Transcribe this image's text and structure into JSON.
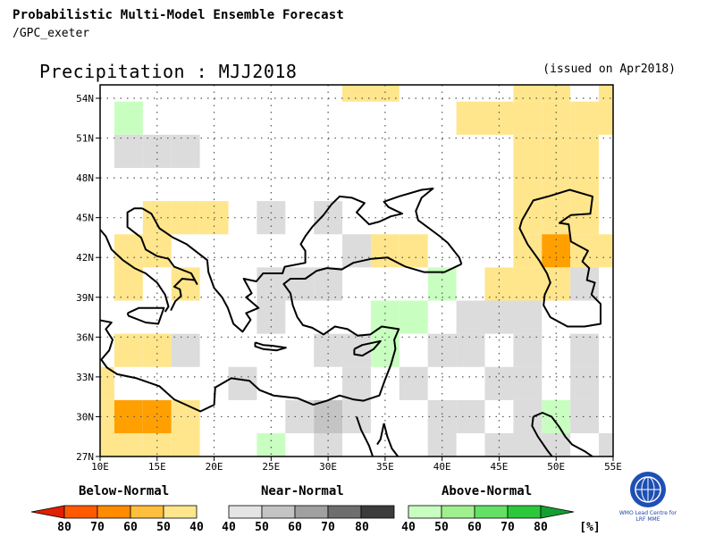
{
  "header": {
    "line1": "Probabilistic Multi-Model Ensemble Forecast",
    "line2": "/GPC_exeter",
    "title": "Precipitation : MJJ2018",
    "issued": "(issued on Apr2018)"
  },
  "map": {
    "lon_range": [
      10,
      55
    ],
    "lat_range": [
      27,
      55.5
    ],
    "x_ticks": [
      "10E",
      "15E",
      "20E",
      "25E",
      "30E",
      "35E",
      "40E",
      "45E",
      "50E",
      "55E"
    ],
    "y_ticks": [
      "27N",
      "30N",
      "33N",
      "36N",
      "39N",
      "42N",
      "45N",
      "48N",
      "51N",
      "54N"
    ],
    "cell_size_deg": 2.5,
    "cells": [
      {
        "lon": 32.5,
        "lat": 55,
        "cat": "b40"
      },
      {
        "lon": 35,
        "lat": 55,
        "cat": "b40"
      },
      {
        "lon": 47.5,
        "lat": 55,
        "cat": "b40"
      },
      {
        "lon": 50,
        "lat": 55,
        "cat": "b40"
      },
      {
        "lon": 55,
        "lat": 55,
        "cat": "b40"
      },
      {
        "lon": 42.5,
        "lat": 52.5,
        "cat": "b40"
      },
      {
        "lon": 45,
        "lat": 52.5,
        "cat": "b40"
      },
      {
        "lon": 47.5,
        "lat": 52.5,
        "cat": "b40"
      },
      {
        "lon": 50,
        "lat": 52.5,
        "cat": "b40"
      },
      {
        "lon": 52.5,
        "lat": 52.5,
        "cat": "b40"
      },
      {
        "lon": 55,
        "lat": 52.5,
        "cat": "b40"
      },
      {
        "lon": 12.5,
        "lat": 52.5,
        "cat": "a40"
      },
      {
        "lon": 12.5,
        "lat": 50,
        "cat": "n40"
      },
      {
        "lon": 15,
        "lat": 50,
        "cat": "n40"
      },
      {
        "lon": 17.5,
        "lat": 50,
        "cat": "n40"
      },
      {
        "lon": 47.5,
        "lat": 50,
        "cat": "b40"
      },
      {
        "lon": 50,
        "lat": 50,
        "cat": "b40"
      },
      {
        "lon": 52.5,
        "lat": 50,
        "cat": "b40"
      },
      {
        "lon": 47.5,
        "lat": 47.5,
        "cat": "b40"
      },
      {
        "lon": 50,
        "lat": 47.5,
        "cat": "b40"
      },
      {
        "lon": 52.5,
        "lat": 47.5,
        "cat": "b40"
      },
      {
        "lon": 15,
        "lat": 45,
        "cat": "b40"
      },
      {
        "lon": 17.5,
        "lat": 45,
        "cat": "b40"
      },
      {
        "lon": 20,
        "lat": 45,
        "cat": "b40"
      },
      {
        "lon": 25,
        "lat": 45,
        "cat": "n40"
      },
      {
        "lon": 30,
        "lat": 45,
        "cat": "n40"
      },
      {
        "lon": 47.5,
        "lat": 45,
        "cat": "b40"
      },
      {
        "lon": 50,
        "lat": 45,
        "cat": "b40"
      },
      {
        "lon": 52.5,
        "lat": 45,
        "cat": "b40"
      },
      {
        "lon": 15,
        "lat": 42.5,
        "cat": "b40"
      },
      {
        "lon": 12.5,
        "lat": 42.5,
        "cat": "b40"
      },
      {
        "lon": 32.5,
        "lat": 42.5,
        "cat": "n40"
      },
      {
        "lon": 35,
        "lat": 42.5,
        "cat": "b40"
      },
      {
        "lon": 37.5,
        "lat": 42.5,
        "cat": "b40"
      },
      {
        "lon": 47.5,
        "lat": 42.5,
        "cat": "b40"
      },
      {
        "lon": 50,
        "lat": 42.5,
        "cat": "b50"
      },
      {
        "lon": 52.5,
        "lat": 42.5,
        "cat": "b40"
      },
      {
        "lon": 55,
        "lat": 42.5,
        "cat": "b40"
      },
      {
        "lon": 12.5,
        "lat": 40,
        "cat": "b40"
      },
      {
        "lon": 17.5,
        "lat": 40,
        "cat": "b40"
      },
      {
        "lon": 25,
        "lat": 40,
        "cat": "n40"
      },
      {
        "lon": 27.5,
        "lat": 40,
        "cat": "n40"
      },
      {
        "lon": 30,
        "lat": 40,
        "cat": "n40"
      },
      {
        "lon": 40,
        "lat": 40,
        "cat": "a40"
      },
      {
        "lon": 45,
        "lat": 40,
        "cat": "b40"
      },
      {
        "lon": 47.5,
        "lat": 40,
        "cat": "b40"
      },
      {
        "lon": 50,
        "lat": 40,
        "cat": "b40"
      },
      {
        "lon": 52.5,
        "lat": 40,
        "cat": "n40"
      },
      {
        "lon": 25,
        "lat": 37.5,
        "cat": "n40"
      },
      {
        "lon": 35,
        "lat": 37.5,
        "cat": "a40"
      },
      {
        "lon": 37.5,
        "lat": 37.5,
        "cat": "a40"
      },
      {
        "lon": 42.5,
        "lat": 37.5,
        "cat": "n40"
      },
      {
        "lon": 45,
        "lat": 37.5,
        "cat": "n40"
      },
      {
        "lon": 47.5,
        "lat": 37.5,
        "cat": "n40"
      },
      {
        "lon": 12.5,
        "lat": 35,
        "cat": "b40"
      },
      {
        "lon": 15,
        "lat": 35,
        "cat": "b40"
      },
      {
        "lon": 17.5,
        "lat": 35,
        "cat": "n40"
      },
      {
        "lon": 30,
        "lat": 35,
        "cat": "n40"
      },
      {
        "lon": 32.5,
        "lat": 35,
        "cat": "n40"
      },
      {
        "lon": 35,
        "lat": 35,
        "cat": "a40"
      },
      {
        "lon": 40,
        "lat": 35,
        "cat": "n40"
      },
      {
        "lon": 42.5,
        "lat": 35,
        "cat": "n40"
      },
      {
        "lon": 47.5,
        "lat": 35,
        "cat": "n40"
      },
      {
        "lon": 52.5,
        "lat": 35,
        "cat": "n40"
      },
      {
        "lon": 10,
        "lat": 32.5,
        "cat": "b40"
      },
      {
        "lon": 22.5,
        "lat": 32.5,
        "cat": "n40"
      },
      {
        "lon": 32.5,
        "lat": 32.5,
        "cat": "n40"
      },
      {
        "lon": 37.5,
        "lat": 32.5,
        "cat": "n40"
      },
      {
        "lon": 45,
        "lat": 32.5,
        "cat": "n40"
      },
      {
        "lon": 47.5,
        "lat": 32.5,
        "cat": "n40"
      },
      {
        "lon": 52.5,
        "lat": 32.5,
        "cat": "n40"
      },
      {
        "lon": 10,
        "lat": 30,
        "cat": "b40"
      },
      {
        "lon": 12.5,
        "lat": 30,
        "cat": "b50"
      },
      {
        "lon": 15,
        "lat": 30,
        "cat": "b50"
      },
      {
        "lon": 17.5,
        "lat": 30,
        "cat": "b40"
      },
      {
        "lon": 27.5,
        "lat": 30,
        "cat": "n40"
      },
      {
        "lon": 30,
        "lat": 30,
        "cat": "n50"
      },
      {
        "lon": 32.5,
        "lat": 30,
        "cat": "n40"
      },
      {
        "lon": 40,
        "lat": 30,
        "cat": "n40"
      },
      {
        "lon": 42.5,
        "lat": 30,
        "cat": "n40"
      },
      {
        "lon": 47.5,
        "lat": 30,
        "cat": "n40"
      },
      {
        "lon": 50,
        "lat": 30,
        "cat": "a40"
      },
      {
        "lon": 52.5,
        "lat": 30,
        "cat": "n40"
      },
      {
        "lon": 10,
        "lat": 27.5,
        "cat": "b40"
      },
      {
        "lon": 12.5,
        "lat": 27.5,
        "cat": "b40"
      },
      {
        "lon": 15,
        "lat": 27.5,
        "cat": "b40"
      },
      {
        "lon": 17.5,
        "lat": 27.5,
        "cat": "b40"
      },
      {
        "lon": 25,
        "lat": 27.5,
        "cat": "a40"
      },
      {
        "lon": 30,
        "lat": 27.5,
        "cat": "n40"
      },
      {
        "lon": 40,
        "lat": 27.5,
        "cat": "n40"
      },
      {
        "lon": 45,
        "lat": 27.5,
        "cat": "n40"
      },
      {
        "lon": 47.5,
        "lat": 27.5,
        "cat": "n40"
      },
      {
        "lon": 50,
        "lat": 27.5,
        "cat": "n40"
      },
      {
        "lon": 55,
        "lat": 27.5,
        "cat": "n40"
      }
    ]
  },
  "legend": {
    "below": {
      "title": "Below-Normal",
      "labels": [
        "80",
        "70",
        "60",
        "50",
        "40"
      ],
      "colors": [
        "#e02000",
        "#ff5a00",
        "#ff8c00",
        "#ffbe3c",
        "#ffe68c"
      ]
    },
    "near": {
      "title": "Near-Normal",
      "labels": [
        "40",
        "50",
        "60",
        "70",
        "80"
      ],
      "colors": [
        "#e4e4e4",
        "#c4c4c4",
        "#a0a0a0",
        "#6e6e6e",
        "#3c3c3c"
      ]
    },
    "above": {
      "title": "Above-Normal",
      "labels": [
        "40",
        "50",
        "60",
        "70",
        "80",
        "[%]"
      ],
      "colors": [
        "#c8ffc0",
        "#a0f090",
        "#64e064",
        "#2cc83c",
        "#14a030"
      ]
    }
  },
  "colors": {
    "b40": "#ffe68c",
    "b50": "#ffa000",
    "n40": "#dcdcdc",
    "n50": "#c4c4c4",
    "a40": "#c8ffc0"
  },
  "logo": {
    "caption_1": "WMO Lead Centre for",
    "caption_2": "LRF MME"
  }
}
